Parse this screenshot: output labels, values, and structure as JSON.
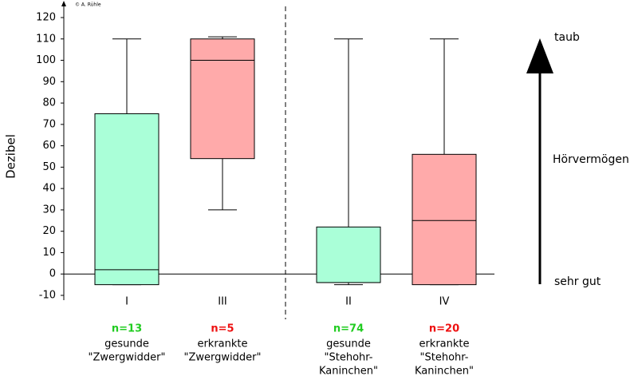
{
  "chart_data": {
    "type": "box",
    "ylabel": "Dezibel",
    "credit": "© A. Rühle",
    "ylim": [
      -10,
      120
    ],
    "yticks": [
      -10,
      0,
      10,
      20,
      30,
      40,
      50,
      60,
      70,
      80,
      90,
      100,
      110,
      120
    ],
    "boxes": [
      {
        "label": "I",
        "n": "n=13",
        "n_color": "#22cc22",
        "color": "#aaffd8",
        "description": [
          "gesunde",
          "\"Zwergwidder\""
        ],
        "whisker_low": -5,
        "q1": -5,
        "median": 2,
        "q3": 75,
        "whisker_high": 110
      },
      {
        "label": "III",
        "n": "n=5",
        "n_color": "#ee1111",
        "color": "#ffaaaa",
        "description": [
          "erkrankte",
          "\"Zwergwidder\""
        ],
        "whisker_low": 30,
        "q1": 54,
        "median": 100,
        "q3": 110,
        "whisker_high": 111
      },
      {
        "label": "II",
        "n": "n=74",
        "n_color": "#22cc22",
        "color": "#aaffd8",
        "description": [
          "gesunde",
          "\"Stehohr-",
          "Kaninchen\""
        ],
        "whisker_low": -5,
        "q1": -4,
        "median": -4,
        "q3": 22,
        "whisker_high": 110
      },
      {
        "label": "IV",
        "n": "n=20",
        "n_color": "#ee1111",
        "color": "#ffaaaa",
        "description": [
          "erkrankte",
          "\"Stehohr-",
          "Kaninchen\""
        ],
        "whisker_low": -5,
        "q1": -5,
        "median": 25,
        "q3": 56,
        "whisker_high": 110
      }
    ],
    "scale_arrow": {
      "top": "taub",
      "middle": "Hörvermögen",
      "bottom": "sehr gut"
    }
  }
}
